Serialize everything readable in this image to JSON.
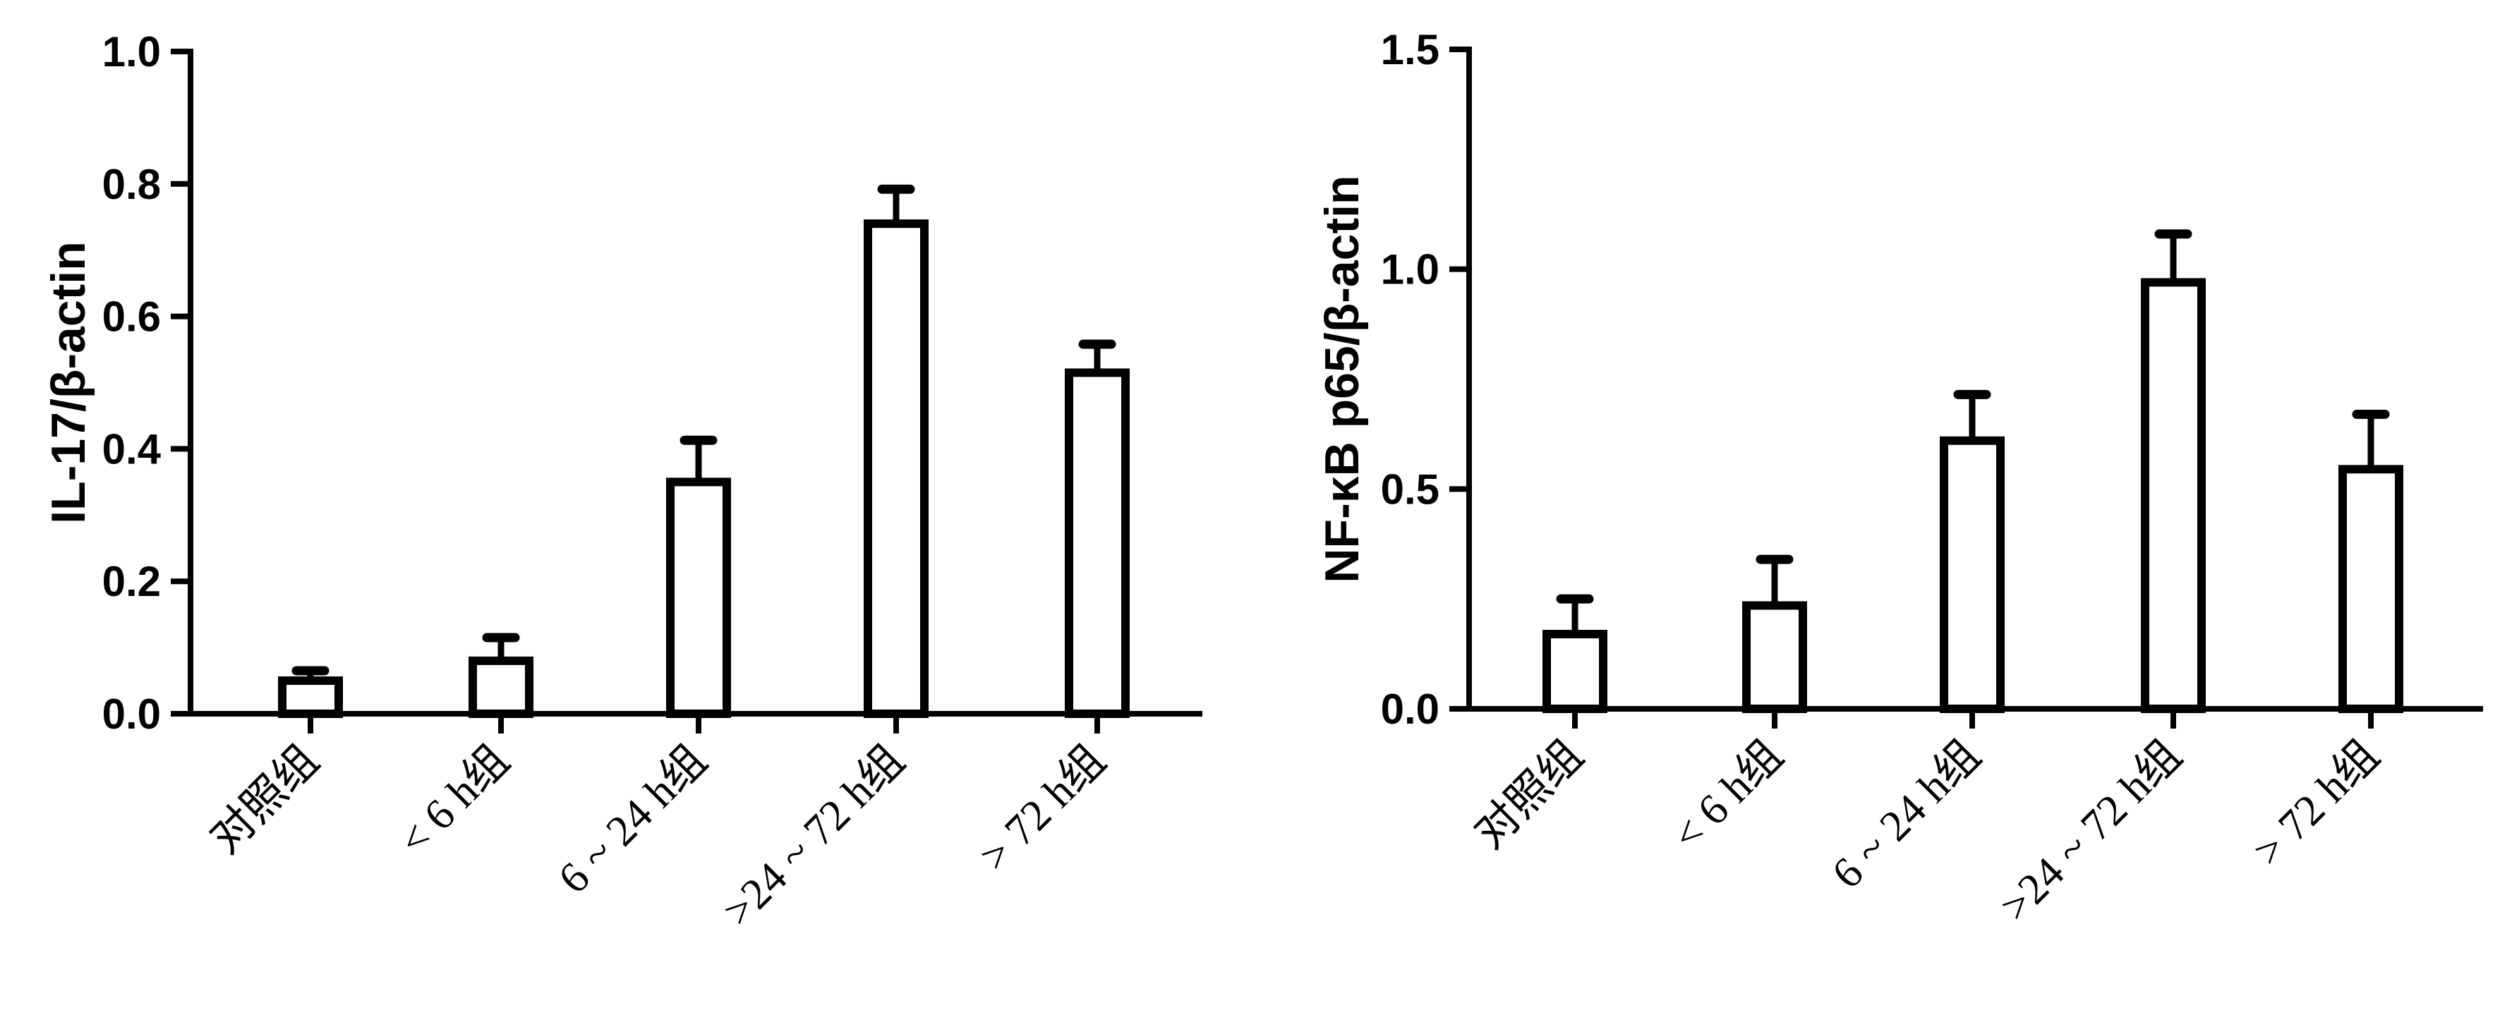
{
  "chart_data": [
    {
      "type": "bar",
      "title": "",
      "xlabel": "",
      "ylabel": "IL-17/β-actin",
      "ylim": [
        0,
        1.0
      ],
      "yticks": [
        "0.0",
        "0.2",
        "0.4",
        "0.6",
        "0.8",
        "1.0"
      ],
      "categories": [
        "对照组",
        "< 6 h组",
        "6 ~ 24 h组",
        ">24 ~ 72 h组",
        "> 72 h组"
      ],
      "values": [
        0.05,
        0.08,
        0.35,
        0.74,
        0.515
      ],
      "error_upper": [
        0.065,
        0.115,
        0.413,
        0.792,
        0.558
      ],
      "grid": false,
      "legend": "none"
    },
    {
      "type": "bar",
      "title": "",
      "xlabel": "",
      "ylabel": "NF-κB p65/β-actin",
      "ylim": [
        0,
        1.5
      ],
      "yticks": [
        "0.0",
        "0.5",
        "1.0",
        "1.5"
      ],
      "categories": [
        "对照组",
        "< 6 h组",
        "6 ~ 24 h组",
        ">24 ~ 72 h组",
        "> 72 h组"
      ],
      "values": [
        0.17,
        0.235,
        0.61,
        0.97,
        0.545
      ],
      "error_upper": [
        0.25,
        0.34,
        0.715,
        1.08,
        0.67
      ],
      "grid": false,
      "legend": "none"
    }
  ]
}
